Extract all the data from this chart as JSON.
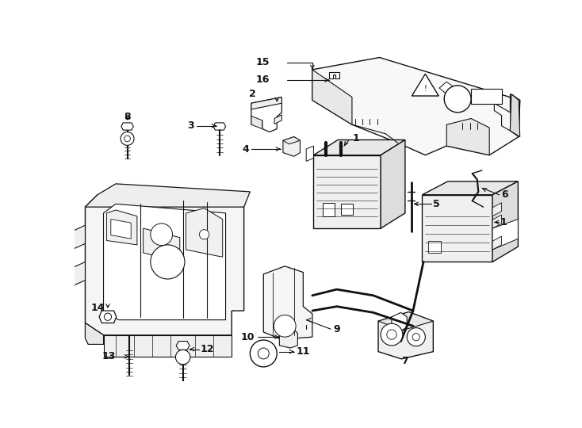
{
  "background": "#ffffff",
  "line_color": "#111111",
  "fig_width": 7.34,
  "fig_height": 5.4,
  "dpi": 100
}
